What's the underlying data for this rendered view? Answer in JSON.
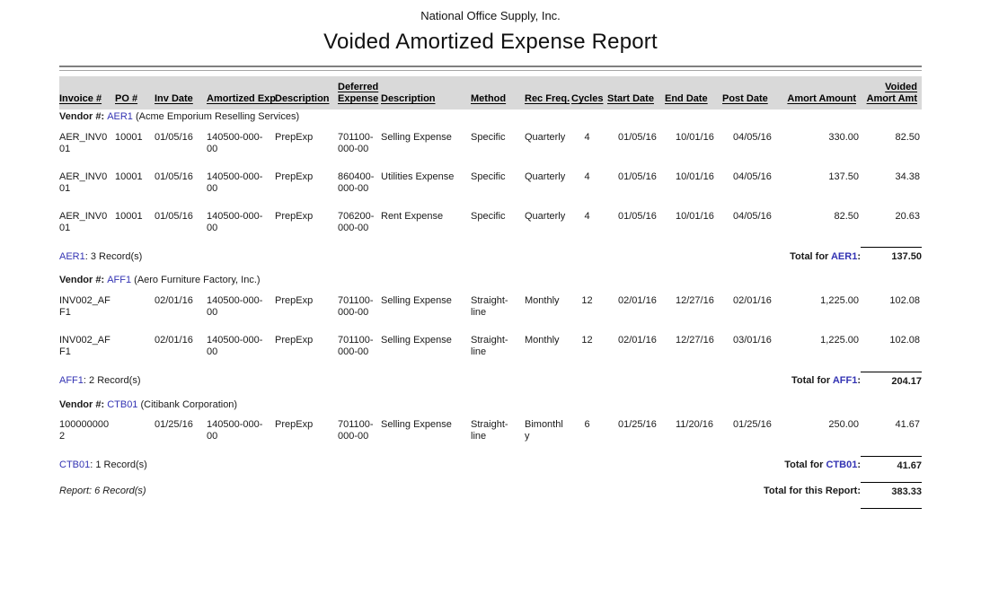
{
  "colors": {
    "vendor_code_blue": "#3333b3",
    "header_band_gray": "#d9d9d9",
    "rule_gray": "#7f7f7f"
  },
  "header": {
    "company": "National Office Supply, Inc.",
    "title": "Voided Amortized Expense Report"
  },
  "table": {
    "columns": [
      {
        "key": "invoice",
        "label": "Invoice #"
      },
      {
        "key": "po",
        "label": "PO #"
      },
      {
        "key": "inv_date",
        "label": "Inv Date"
      },
      {
        "key": "amortized_exp",
        "label": "Amortized Exp"
      },
      {
        "key": "description1",
        "label": "Description"
      },
      {
        "key": "deferred_expense",
        "label": "Deferred\nExpense"
      },
      {
        "key": "description2",
        "label": "Description"
      },
      {
        "key": "method",
        "label": "Method"
      },
      {
        "key": "rec_freq",
        "label": "Rec Freq."
      },
      {
        "key": "cycles",
        "label": "Cycles"
      },
      {
        "key": "start_date",
        "label": "Start Date"
      },
      {
        "key": "end_date",
        "label": "End Date"
      },
      {
        "key": "post_date",
        "label": "Post Date"
      },
      {
        "key": "amort_amount",
        "label": "Amort Amount"
      },
      {
        "key": "voided_amort_amt",
        "label": "Voided\nAmort Amt"
      }
    ],
    "groups": [
      {
        "vendor": {
          "prefix": "Vendor #:",
          "code": "AER1",
          "name": "(Acme Emporium Reselling Services)"
        },
        "rows": [
          {
            "invoice": "AER_INV001",
            "po": "10001",
            "inv_date": "01/05/16",
            "amortized_exp": "140500-000-00",
            "description1": "PrepExp",
            "deferred_expense": "701100-000-00",
            "description2": "Selling Expense",
            "method": "Specific",
            "rec_freq": "Quarterly",
            "cycles": "4",
            "start_date": "01/05/16",
            "end_date": "10/01/16",
            "post_date": "04/05/16",
            "amort_amount": "330.00",
            "voided_amort_amt": "82.50"
          },
          {
            "invoice": "AER_INV001",
            "po": "10001",
            "inv_date": "01/05/16",
            "amortized_exp": "140500-000-00",
            "description1": "PrepExp",
            "deferred_expense": "860400-000-00",
            "description2": "Utilities Expense",
            "method": "Specific",
            "rec_freq": "Quarterly",
            "cycles": "4",
            "start_date": "01/05/16",
            "end_date": "10/01/16",
            "post_date": "04/05/16",
            "amort_amount": "137.50",
            "voided_amort_amt": "34.38"
          },
          {
            "invoice": "AER_INV001",
            "po": "10001",
            "inv_date": "01/05/16",
            "amortized_exp": "140500-000-00",
            "description1": "PrepExp",
            "deferred_expense": "706200-000-00",
            "description2": "Rent Expense",
            "method": "Specific",
            "rec_freq": "Quarterly",
            "cycles": "4",
            "start_date": "01/05/16",
            "end_date": "10/01/16",
            "post_date": "04/05/16",
            "amort_amount": "82.50",
            "voided_amort_amt": "20.63"
          }
        ],
        "summary": {
          "code": "AER1",
          "records_text": ": 3 Record(s)",
          "total_prefix": "Total for",
          "total_code": "AER1",
          "total_suffix": ":",
          "total_value": "137.50"
        }
      },
      {
        "vendor": {
          "prefix": "Vendor #:",
          "code": "AFF1",
          "name": "(Aero Furniture Factory, Inc.)"
        },
        "rows": [
          {
            "invoice": "INV002_AFF1",
            "po": "",
            "inv_date": "02/01/16",
            "amortized_exp": "140500-000-00",
            "description1": "PrepExp",
            "deferred_expense": "701100-000-00",
            "description2": "Selling Expense",
            "method": "Straight-line",
            "rec_freq": "Monthly",
            "cycles": "12",
            "start_date": "02/01/16",
            "end_date": "12/27/16",
            "post_date": "02/01/16",
            "amort_amount": "1,225.00",
            "voided_amort_amt": "102.08"
          },
          {
            "invoice": "INV002_AFF1",
            "po": "",
            "inv_date": "02/01/16",
            "amortized_exp": "140500-000-00",
            "description1": "PrepExp",
            "deferred_expense": "701100-000-00",
            "description2": "Selling Expense",
            "method": "Straight-line",
            "rec_freq": "Monthly",
            "cycles": "12",
            "start_date": "02/01/16",
            "end_date": "12/27/16",
            "post_date": "03/01/16",
            "amort_amount": "1,225.00",
            "voided_amort_amt": "102.08"
          }
        ],
        "summary": {
          "code": "AFF1",
          "records_text": ": 2 Record(s)",
          "total_prefix": "Total for",
          "total_code": "AFF1",
          "total_suffix": ":",
          "total_value": "204.17"
        }
      },
      {
        "vendor": {
          "prefix": "Vendor #:",
          "code": "CTB01",
          "name": "(Citibank Corporation)"
        },
        "rows": [
          {
            "invoice": "1000000002",
            "po": "",
            "inv_date": "01/25/16",
            "amortized_exp": "140500-000-00",
            "description1": "PrepExp",
            "deferred_expense": "701100-000-00",
            "description2": "Selling Expense",
            "method": "Straight-line",
            "rec_freq": "Bimonthly",
            "cycles": "6",
            "start_date": "01/25/16",
            "end_date": "11/20/16",
            "post_date": "01/25/16",
            "amort_amount": "250.00",
            "voided_amort_amt": "41.67"
          }
        ],
        "summary": {
          "code": "CTB01",
          "records_text": ": 1 Record(s)",
          "total_prefix": "Total for",
          "total_code": "CTB01",
          "total_suffix": ":",
          "total_value": "41.67"
        }
      }
    ],
    "report_summary": {
      "left_text": "Report: 6 Record(s)",
      "total_label": "Total for this Report:",
      "total_value": "383.33"
    }
  }
}
